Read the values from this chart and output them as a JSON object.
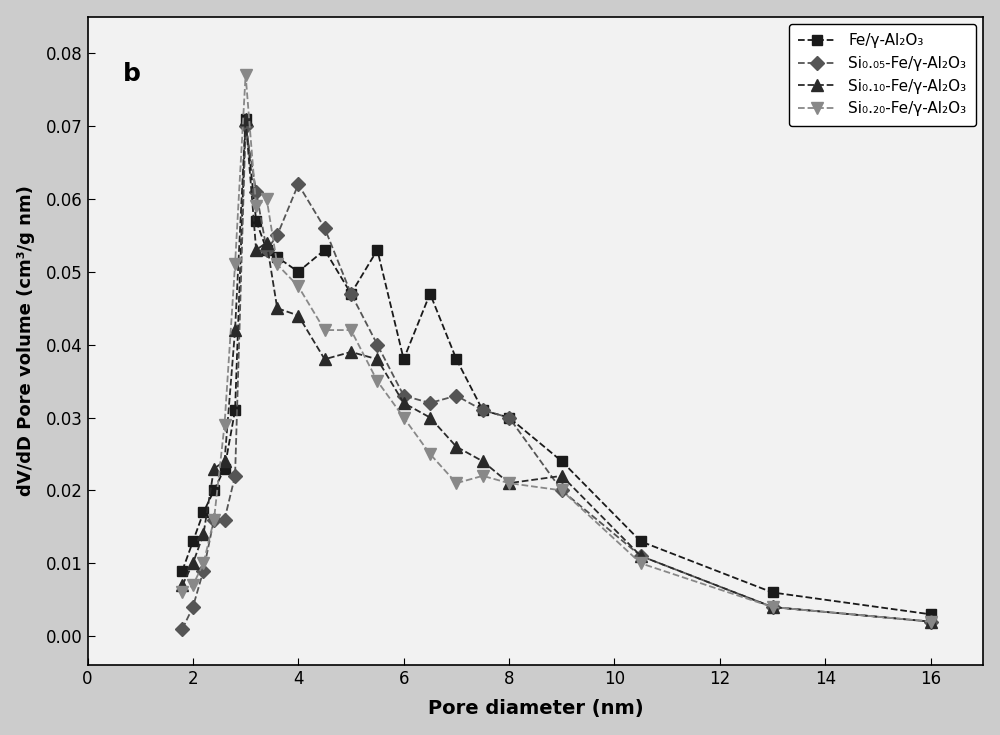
{
  "series": [
    {
      "label": "Fe/γ-Al₂O₃",
      "color": "#1a1a1a",
      "marker": "s",
      "markersize": 7,
      "linestyle": "--",
      "x": [
        1.8,
        2.0,
        2.2,
        2.4,
        2.6,
        2.8,
        3.0,
        3.2,
        3.4,
        3.6,
        4.0,
        4.5,
        5.0,
        5.5,
        6.0,
        6.5,
        7.0,
        7.5,
        8.0,
        9.0,
        10.5,
        13.0,
        16.0
      ],
      "y": [
        0.009,
        0.013,
        0.017,
        0.02,
        0.023,
        0.031,
        0.071,
        0.057,
        0.053,
        0.052,
        0.05,
        0.053,
        0.047,
        0.053,
        0.038,
        0.047,
        0.038,
        0.031,
        0.03,
        0.024,
        0.013,
        0.006,
        0.003
      ]
    },
    {
      "label": "Si₀.₀₅-Fe/γ-Al₂O₃",
      "color": "#555555",
      "marker": "D",
      "markersize": 7,
      "linestyle": "--",
      "x": [
        1.8,
        2.0,
        2.2,
        2.4,
        2.6,
        2.8,
        3.0,
        3.2,
        3.4,
        3.6,
        4.0,
        4.5,
        5.0,
        5.5,
        6.0,
        6.5,
        7.0,
        7.5,
        8.0,
        9.0,
        10.5,
        13.0,
        16.0
      ],
      "y": [
        0.001,
        0.004,
        0.009,
        0.016,
        0.016,
        0.022,
        0.07,
        0.061,
        0.053,
        0.055,
        0.062,
        0.056,
        0.047,
        0.04,
        0.033,
        0.032,
        0.033,
        0.031,
        0.03,
        0.02,
        0.011,
        0.004,
        0.002
      ]
    },
    {
      "label": "Si₀.₁₀-Fe/γ-Al₂O₃",
      "color": "#2a2a2a",
      "marker": "^",
      "markersize": 8,
      "linestyle": "--",
      "x": [
        1.8,
        2.0,
        2.2,
        2.4,
        2.6,
        2.8,
        3.0,
        3.2,
        3.4,
        3.6,
        4.0,
        4.5,
        5.0,
        5.5,
        6.0,
        6.5,
        7.0,
        7.5,
        8.0,
        9.0,
        10.5,
        13.0,
        16.0
      ],
      "y": [
        0.007,
        0.01,
        0.014,
        0.023,
        0.024,
        0.042,
        0.071,
        0.053,
        0.054,
        0.045,
        0.044,
        0.038,
        0.039,
        0.038,
        0.032,
        0.03,
        0.026,
        0.024,
        0.021,
        0.022,
        0.011,
        0.004,
        0.002
      ]
    },
    {
      "label": "Si₀.₂₀-Fe/γ-Al₂O₃",
      "color": "#888888",
      "marker": "v",
      "markersize": 8,
      "linestyle": "--",
      "x": [
        1.8,
        2.0,
        2.2,
        2.4,
        2.6,
        2.8,
        3.0,
        3.2,
        3.4,
        3.6,
        4.0,
        4.5,
        5.0,
        5.5,
        6.0,
        6.5,
        7.0,
        7.5,
        8.0,
        9.0,
        10.5,
        13.0,
        16.0
      ],
      "y": [
        0.006,
        0.007,
        0.01,
        0.016,
        0.029,
        0.051,
        0.077,
        0.059,
        0.06,
        0.051,
        0.048,
        0.042,
        0.042,
        0.035,
        0.03,
        0.025,
        0.021,
        0.022,
        0.021,
        0.02,
        0.01,
        0.004,
        0.002
      ]
    }
  ],
  "xlabel": "Pore diameter (nm)",
  "ylabel": "dV/dD Pore volume (cm³/g nm)",
  "xlim": [
    0,
    17
  ],
  "ylim": [
    -0.004,
    0.085
  ],
  "xticks": [
    0,
    2,
    4,
    6,
    8,
    10,
    12,
    14,
    16
  ],
  "yticks": [
    0.0,
    0.01,
    0.02,
    0.03,
    0.04,
    0.05,
    0.06,
    0.07,
    0.08
  ],
  "annotation": "b",
  "legend_loc": "upper right"
}
